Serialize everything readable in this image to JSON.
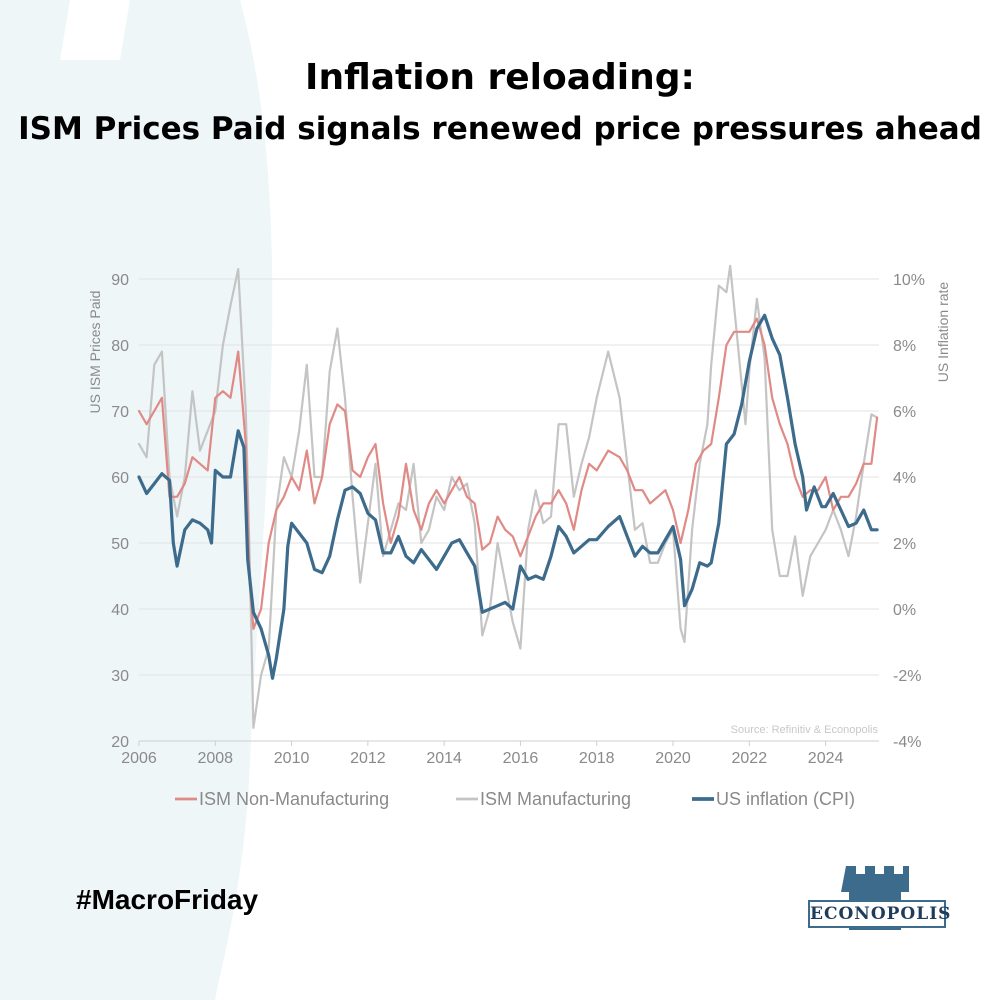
{
  "title": {
    "line1": "Inflation reloading:",
    "line2": "ISM Prices Paid signals renewed price pressures ahead"
  },
  "hashtag": "#MacroFriday",
  "logo_text": "ECONOPOLIS",
  "colors": {
    "non_manufacturing": "#e08a86",
    "manufacturing": "#c4c4c4",
    "cpi": "#3d6b8c",
    "swoosh": "#eef6f8"
  },
  "chart_data": {
    "type": "line",
    "source": "Source: Refinitiv & Econopolis",
    "ylabel_left": "US ISM Prices Paid",
    "ylabel_right": "US Inflation rate",
    "xlim": [
      2006,
      2025.4
    ],
    "ylim_left": [
      20,
      90
    ],
    "ylim_right": [
      -4,
      10
    ],
    "x_ticks": [
      "2006",
      "2008",
      "2010",
      "2012",
      "2014",
      "2016",
      "2018",
      "2020",
      "2022",
      "2024"
    ],
    "y_left_ticks": [
      "20",
      "30",
      "40",
      "50",
      "60",
      "70",
      "80",
      "90"
    ],
    "y_right_ticks": [
      "-4%",
      "-2%",
      "0%",
      "2%",
      "4%",
      "6%",
      "8%",
      "10%"
    ],
    "grid": true,
    "legend_position": "bottom",
    "series": [
      {
        "name": "ISM Manufacturing",
        "axis": "left",
        "points": [
          [
            2006,
            65
          ],
          [
            2006.2,
            63
          ],
          [
            2006.4,
            77
          ],
          [
            2006.6,
            79
          ],
          [
            2006.8,
            60
          ],
          [
            2007,
            54
          ],
          [
            2007.2,
            60
          ],
          [
            2007.4,
            73
          ],
          [
            2007.6,
            64
          ],
          [
            2007.8,
            67
          ],
          [
            2008,
            70
          ],
          [
            2008.2,
            80
          ],
          [
            2008.4,
            86
          ],
          [
            2008.6,
            91.5
          ],
          [
            2008.8,
            70
          ],
          [
            2008.9,
            48
          ],
          [
            2009,
            22
          ],
          [
            2009.2,
            30
          ],
          [
            2009.4,
            34
          ],
          [
            2009.6,
            55
          ],
          [
            2009.8,
            63
          ],
          [
            2010,
            60
          ],
          [
            2010.2,
            67
          ],
          [
            2010.4,
            77
          ],
          [
            2010.6,
            60
          ],
          [
            2010.8,
            60
          ],
          [
            2011,
            76
          ],
          [
            2011.2,
            82.5
          ],
          [
            2011.4,
            72
          ],
          [
            2011.6,
            57
          ],
          [
            2011.8,
            44
          ],
          [
            2012,
            53
          ],
          [
            2012.2,
            62
          ],
          [
            2012.4,
            48
          ],
          [
            2012.6,
            52
          ],
          [
            2012.8,
            56
          ],
          [
            2013,
            55
          ],
          [
            2013.2,
            62
          ],
          [
            2013.4,
            50
          ],
          [
            2013.6,
            52
          ],
          [
            2013.8,
            57
          ],
          [
            2014,
            55
          ],
          [
            2014.2,
            60
          ],
          [
            2014.4,
            58
          ],
          [
            2014.6,
            59
          ],
          [
            2014.8,
            53
          ],
          [
            2015,
            36
          ],
          [
            2015.2,
            40
          ],
          [
            2015.4,
            50
          ],
          [
            2015.6,
            44
          ],
          [
            2015.8,
            38
          ],
          [
            2016,
            34
          ],
          [
            2016.2,
            52
          ],
          [
            2016.4,
            58
          ],
          [
            2016.6,
            53
          ],
          [
            2016.8,
            54
          ],
          [
            2017,
            68
          ],
          [
            2017.2,
            68
          ],
          [
            2017.4,
            57
          ],
          [
            2017.6,
            62
          ],
          [
            2017.8,
            66
          ],
          [
            2018,
            72
          ],
          [
            2018.3,
            79
          ],
          [
            2018.6,
            72
          ],
          [
            2018.8,
            62
          ],
          [
            2019,
            52
          ],
          [
            2019.2,
            53
          ],
          [
            2019.4,
            47
          ],
          [
            2019.6,
            47
          ],
          [
            2019.8,
            50
          ],
          [
            2020,
            52
          ],
          [
            2020.2,
            37
          ],
          [
            2020.3,
            35
          ],
          [
            2020.5,
            52
          ],
          [
            2020.7,
            62
          ],
          [
            2020.9,
            68
          ],
          [
            2021,
            77
          ],
          [
            2021.2,
            89
          ],
          [
            2021.4,
            88
          ],
          [
            2021.5,
            92
          ],
          [
            2021.7,
            80
          ],
          [
            2021.9,
            68
          ],
          [
            2022,
            76
          ],
          [
            2022.2,
            87
          ],
          [
            2022.4,
            78
          ],
          [
            2022.6,
            52
          ],
          [
            2022.8,
            45
          ],
          [
            2023,
            45
          ],
          [
            2023.2,
            51
          ],
          [
            2023.4,
            42
          ],
          [
            2023.6,
            48
          ],
          [
            2023.8,
            50
          ],
          [
            2024,
            52
          ],
          [
            2024.2,
            55
          ],
          [
            2024.4,
            52
          ],
          [
            2024.6,
            48
          ],
          [
            2024.8,
            54
          ],
          [
            2025,
            62
          ],
          [
            2025.2,
            69.5
          ],
          [
            2025.35,
            69
          ]
        ]
      },
      {
        "name": "ISM Non-Manufacturing",
        "axis": "left",
        "points": [
          [
            2006,
            70
          ],
          [
            2006.2,
            68
          ],
          [
            2006.4,
            70
          ],
          [
            2006.6,
            72
          ],
          [
            2006.8,
            57
          ],
          [
            2007,
            57
          ],
          [
            2007.2,
            59
          ],
          [
            2007.4,
            63
          ],
          [
            2007.6,
            62
          ],
          [
            2007.8,
            61
          ],
          [
            2008,
            72
          ],
          [
            2008.2,
            73
          ],
          [
            2008.4,
            72
          ],
          [
            2008.6,
            79
          ],
          [
            2008.8,
            65
          ],
          [
            2008.9,
            44
          ],
          [
            2009,
            37
          ],
          [
            2009.2,
            40
          ],
          [
            2009.4,
            50
          ],
          [
            2009.6,
            55
          ],
          [
            2009.8,
            57
          ],
          [
            2010,
            60
          ],
          [
            2010.2,
            58
          ],
          [
            2010.4,
            64
          ],
          [
            2010.6,
            56
          ],
          [
            2010.8,
            60
          ],
          [
            2011,
            68
          ],
          [
            2011.2,
            71
          ],
          [
            2011.4,
            70
          ],
          [
            2011.6,
            61
          ],
          [
            2011.8,
            60
          ],
          [
            2012,
            63
          ],
          [
            2012.2,
            65
          ],
          [
            2012.4,
            56
          ],
          [
            2012.6,
            50
          ],
          [
            2012.8,
            54
          ],
          [
            2013,
            62
          ],
          [
            2013.2,
            55
          ],
          [
            2013.4,
            52
          ],
          [
            2013.6,
            56
          ],
          [
            2013.8,
            58
          ],
          [
            2014,
            56
          ],
          [
            2014.2,
            58
          ],
          [
            2014.4,
            60
          ],
          [
            2014.6,
            57
          ],
          [
            2014.8,
            56
          ],
          [
            2015,
            49
          ],
          [
            2015.2,
            50
          ],
          [
            2015.4,
            54
          ],
          [
            2015.6,
            52
          ],
          [
            2015.8,
            51
          ],
          [
            2016,
            48
          ],
          [
            2016.2,
            51
          ],
          [
            2016.4,
            54
          ],
          [
            2016.6,
            56
          ],
          [
            2016.8,
            56
          ],
          [
            2017,
            58
          ],
          [
            2017.2,
            56
          ],
          [
            2017.4,
            52
          ],
          [
            2017.6,
            58
          ],
          [
            2017.8,
            62
          ],
          [
            2018,
            61
          ],
          [
            2018.3,
            64
          ],
          [
            2018.6,
            63
          ],
          [
            2018.8,
            61
          ],
          [
            2019,
            58
          ],
          [
            2019.2,
            58
          ],
          [
            2019.4,
            56
          ],
          [
            2019.6,
            57
          ],
          [
            2019.8,
            58
          ],
          [
            2020,
            55
          ],
          [
            2020.2,
            50
          ],
          [
            2020.4,
            55
          ],
          [
            2020.6,
            62
          ],
          [
            2020.8,
            64
          ],
          [
            2021,
            65
          ],
          [
            2021.2,
            72
          ],
          [
            2021.4,
            80
          ],
          [
            2021.6,
            82
          ],
          [
            2021.8,
            82
          ],
          [
            2022,
            82
          ],
          [
            2022.2,
            84
          ],
          [
            2022.4,
            80
          ],
          [
            2022.6,
            72
          ],
          [
            2022.8,
            68
          ],
          [
            2023,
            65
          ],
          [
            2023.2,
            60
          ],
          [
            2023.4,
            57
          ],
          [
            2023.6,
            58
          ],
          [
            2023.8,
            58
          ],
          [
            2024,
            60
          ],
          [
            2024.2,
            55
          ],
          [
            2024.4,
            57
          ],
          [
            2024.6,
            57
          ],
          [
            2024.8,
            59
          ],
          [
            2025,
            62
          ],
          [
            2025.2,
            62
          ],
          [
            2025.35,
            69
          ]
        ]
      },
      {
        "name": "US inflation (CPI)",
        "axis": "right",
        "points": [
          [
            2006,
            4.0
          ],
          [
            2006.2,
            3.5
          ],
          [
            2006.4,
            3.8
          ],
          [
            2006.6,
            4.1
          ],
          [
            2006.8,
            3.9
          ],
          [
            2006.9,
            2.0
          ],
          [
            2007,
            1.3
          ],
          [
            2007.2,
            2.4
          ],
          [
            2007.4,
            2.7
          ],
          [
            2007.6,
            2.6
          ],
          [
            2007.8,
            2.4
          ],
          [
            2007.9,
            2.0
          ],
          [
            2008,
            4.2
          ],
          [
            2008.2,
            4.0
          ],
          [
            2008.4,
            4.0
          ],
          [
            2008.6,
            5.4
          ],
          [
            2008.75,
            4.9
          ],
          [
            2008.85,
            1.5
          ],
          [
            2009,
            -0.1
          ],
          [
            2009.2,
            -0.6
          ],
          [
            2009.4,
            -1.4
          ],
          [
            2009.5,
            -2.1
          ],
          [
            2009.6,
            -1.5
          ],
          [
            2009.8,
            0.0
          ],
          [
            2009.9,
            1.9
          ],
          [
            2010,
            2.6
          ],
          [
            2010.2,
            2.3
          ],
          [
            2010.4,
            2.0
          ],
          [
            2010.6,
            1.2
          ],
          [
            2010.8,
            1.1
          ],
          [
            2011,
            1.6
          ],
          [
            2011.2,
            2.7
          ],
          [
            2011.4,
            3.6
          ],
          [
            2011.6,
            3.7
          ],
          [
            2011.8,
            3.5
          ],
          [
            2012,
            2.9
          ],
          [
            2012.2,
            2.7
          ],
          [
            2012.4,
            1.7
          ],
          [
            2012.6,
            1.7
          ],
          [
            2012.8,
            2.2
          ],
          [
            2013,
            1.6
          ],
          [
            2013.2,
            1.4
          ],
          [
            2013.4,
            1.8
          ],
          [
            2013.6,
            1.5
          ],
          [
            2013.8,
            1.2
          ],
          [
            2014,
            1.6
          ],
          [
            2014.2,
            2.0
          ],
          [
            2014.4,
            2.1
          ],
          [
            2014.6,
            1.7
          ],
          [
            2014.8,
            1.3
          ],
          [
            2015,
            -0.1
          ],
          [
            2015.2,
            0.0
          ],
          [
            2015.4,
            0.1
          ],
          [
            2015.6,
            0.2
          ],
          [
            2015.8,
            0.0
          ],
          [
            2016,
            1.3
          ],
          [
            2016.2,
            0.9
          ],
          [
            2016.4,
            1.0
          ],
          [
            2016.6,
            0.9
          ],
          [
            2016.8,
            1.6
          ],
          [
            2017,
            2.5
          ],
          [
            2017.2,
            2.2
          ],
          [
            2017.4,
            1.7
          ],
          [
            2017.6,
            1.9
          ],
          [
            2017.8,
            2.1
          ],
          [
            2018,
            2.1
          ],
          [
            2018.3,
            2.5
          ],
          [
            2018.6,
            2.8
          ],
          [
            2018.8,
            2.2
          ],
          [
            2019,
            1.6
          ],
          [
            2019.2,
            1.9
          ],
          [
            2019.4,
            1.7
          ],
          [
            2019.6,
            1.7
          ],
          [
            2019.8,
            2.1
          ],
          [
            2020,
            2.5
          ],
          [
            2020.2,
            1.5
          ],
          [
            2020.3,
            0.1
          ],
          [
            2020.5,
            0.6
          ],
          [
            2020.7,
            1.4
          ],
          [
            2020.9,
            1.3
          ],
          [
            2021,
            1.4
          ],
          [
            2021.2,
            2.6
          ],
          [
            2021.4,
            5.0
          ],
          [
            2021.6,
            5.3
          ],
          [
            2021.8,
            6.2
          ],
          [
            2022,
            7.5
          ],
          [
            2022.2,
            8.5
          ],
          [
            2022.4,
            8.9
          ],
          [
            2022.6,
            8.2
          ],
          [
            2022.8,
            7.7
          ],
          [
            2023,
            6.4
          ],
          [
            2023.2,
            5.0
          ],
          [
            2023.4,
            4.0
          ],
          [
            2023.5,
            3.0
          ],
          [
            2023.7,
            3.7
          ],
          [
            2023.9,
            3.1
          ],
          [
            2024,
            3.1
          ],
          [
            2024.2,
            3.5
          ],
          [
            2024.4,
            3.0
          ],
          [
            2024.6,
            2.5
          ],
          [
            2024.8,
            2.6
          ],
          [
            2025,
            3.0
          ],
          [
            2025.2,
            2.4
          ],
          [
            2025.35,
            2.4
          ]
        ]
      }
    ]
  }
}
